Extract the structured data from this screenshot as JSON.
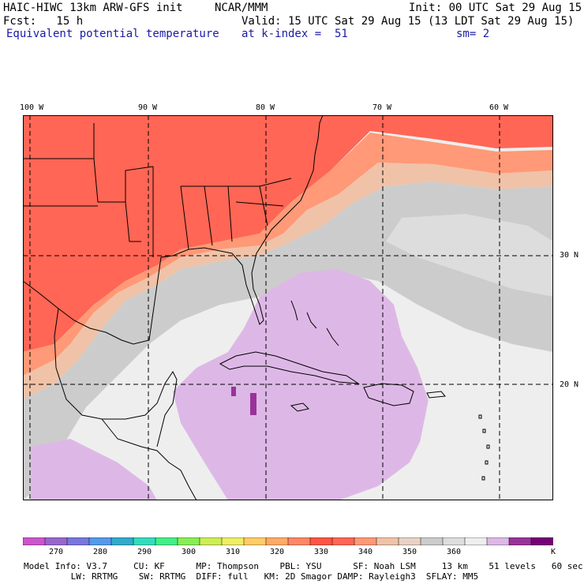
{
  "header": {
    "line1_left": "HAIC-HIWC 13km ARW-GFS init",
    "line1_mid": "NCAR/MMM",
    "line1_right": "Init: 00 UTC Sat 29 Aug 15",
    "fcst": "Fcst:   15 h",
    "valid": "Valid: 15 UTC Sat 29 Aug 15 (13 LDT Sat 29 Aug 15)",
    "field": "Equivalent potential temperature",
    "level": "at k-index =  51",
    "smoothing": "sm= 2"
  },
  "map": {
    "longitude_labels": [
      "100 W",
      "90 W",
      "80 W",
      "70 W",
      "60 W"
    ],
    "latitude_labels": [
      "30 N",
      "20 N"
    ]
  },
  "colorbar": {
    "colors": [
      "#cc55cc",
      "#9966cc",
      "#7777dd",
      "#5599ee",
      "#33aacc",
      "#33ddbb",
      "#44ee88",
      "#88ee55",
      "#ccee55",
      "#eeee66",
      "#ffcc66",
      "#ffaa66",
      "#ff8866",
      "#ff5544",
      "#ff6655",
      "#ff9977",
      "#f0c2a8",
      "#e8d2c6",
      "#cccccc",
      "#dddddd",
      "#eeeeee",
      "#ddb8e6",
      "#993399",
      "#770077"
    ],
    "tick_labels": [
      "270",
      "280",
      "290",
      "300",
      "310",
      "320",
      "330",
      "340",
      "350",
      "360"
    ],
    "unit": "K"
  },
  "footer": {
    "line1": "Model Info: V3.7     CU: KF      MP: Thompson    PBL: YSU      SF: Noah LSM     13 km    51 levels   60 sec",
    "line2": "         LW: RRTMG    SW: RRTMG  DIFF: full   KM: 2D Smagor DAMP: Rayleigh3  SFLAY: MM5"
  }
}
